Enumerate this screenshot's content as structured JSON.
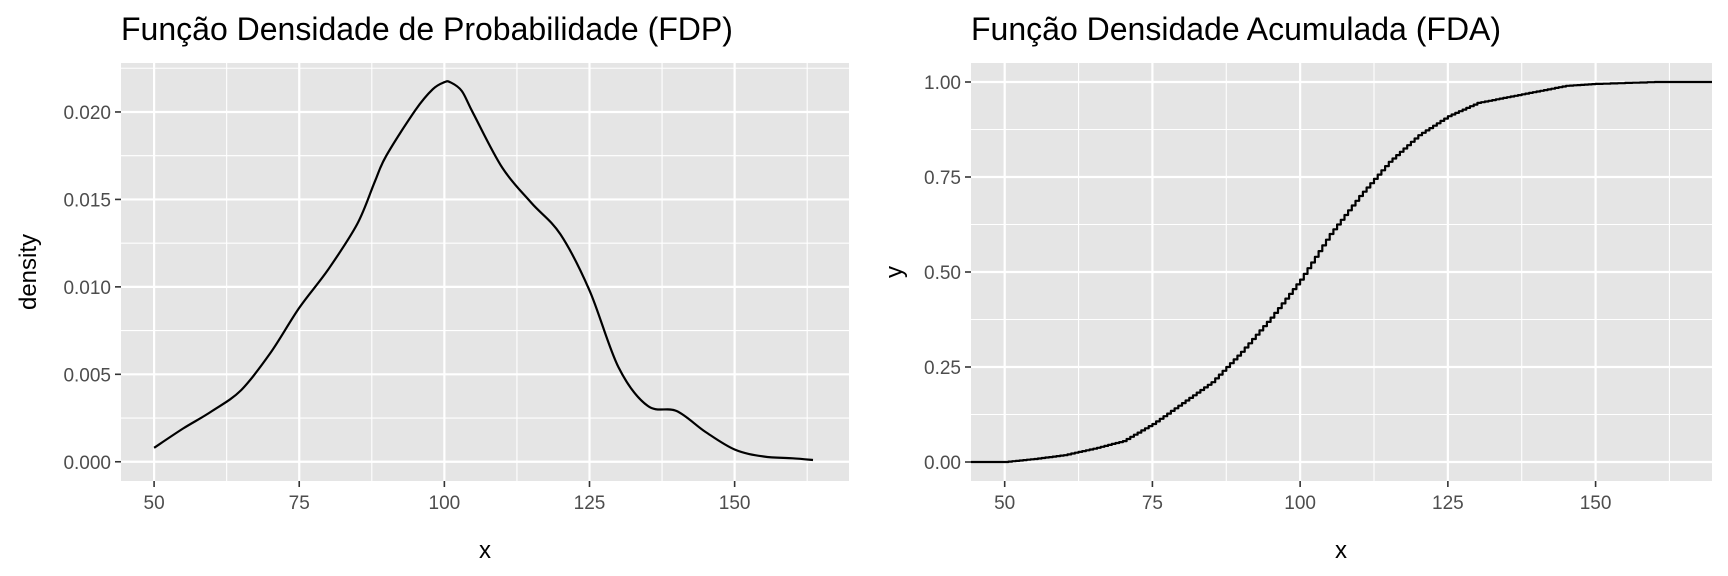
{
  "chart_data": [
    {
      "type": "line",
      "title": "Função Densidade de Probabilidade (FDP)",
      "xlabel": "x",
      "ylabel": "density",
      "xlim": [
        44.3,
        169.7
      ],
      "ylim": [
        -0.0011,
        0.0228
      ],
      "x_ticks": [
        50,
        75,
        100,
        125,
        150
      ],
      "x_tick_labels": [
        "50",
        "75",
        "100",
        "125",
        "150"
      ],
      "y_ticks": [
        0,
        0.005,
        0.01,
        0.015,
        0.02
      ],
      "y_tick_labels": [
        "0.000",
        "0.005",
        "0.010",
        "0.015",
        "0.020"
      ],
      "grid": true,
      "series": [
        {
          "x": [
            50,
            55,
            60,
            65,
            70,
            75,
            80,
            85,
            88,
            90,
            95,
            98,
            100,
            101,
            103,
            105,
            110,
            115,
            120,
            125,
            130,
            135,
            140,
            145,
            150,
            155,
            160,
            163.5
          ],
          "y": [
            0.0008,
            0.0019,
            0.0029,
            0.0041,
            0.0062,
            0.0088,
            0.011,
            0.0136,
            0.016,
            0.0175,
            0.0201,
            0.0213,
            0.0217,
            0.0217,
            0.0212,
            0.0199,
            0.0168,
            0.0148,
            0.013,
            0.0098,
            0.0054,
            0.0032,
            0.0029,
            0.0017,
            0.0007,
            0.0003,
            0.0002,
            0.0001
          ]
        }
      ]
    },
    {
      "type": "line",
      "title": "Função Densidade Acumulada (FDA)",
      "xlabel": "x",
      "ylabel": "y",
      "xlim": [
        44.3,
        169.7
      ],
      "ylim": [
        -0.05,
        1.05
      ],
      "x_ticks": [
        50,
        75,
        100,
        125,
        150
      ],
      "x_tick_labels": [
        "50",
        "75",
        "100",
        "125",
        "150"
      ],
      "y_ticks": [
        0,
        0.25,
        0.5,
        0.75,
        1
      ],
      "y_tick_labels": [
        "0.00",
        "0.25",
        "0.50",
        "0.75",
        "1.00"
      ],
      "grid": true,
      "series": [
        {
          "x": [
            44.3,
            50,
            55,
            60,
            65,
            70,
            75,
            80,
            85,
            90,
            95,
            100,
            105,
            110,
            115,
            120,
            125,
            130,
            135,
            140,
            145,
            150,
            160,
            169.7
          ],
          "y": [
            0.0,
            0.0,
            0.008,
            0.018,
            0.035,
            0.055,
            0.1,
            0.155,
            0.21,
            0.29,
            0.38,
            0.48,
            0.6,
            0.7,
            0.79,
            0.86,
            0.91,
            0.945,
            0.96,
            0.975,
            0.99,
            0.995,
            1.0,
            1.0
          ]
        }
      ]
    }
  ]
}
